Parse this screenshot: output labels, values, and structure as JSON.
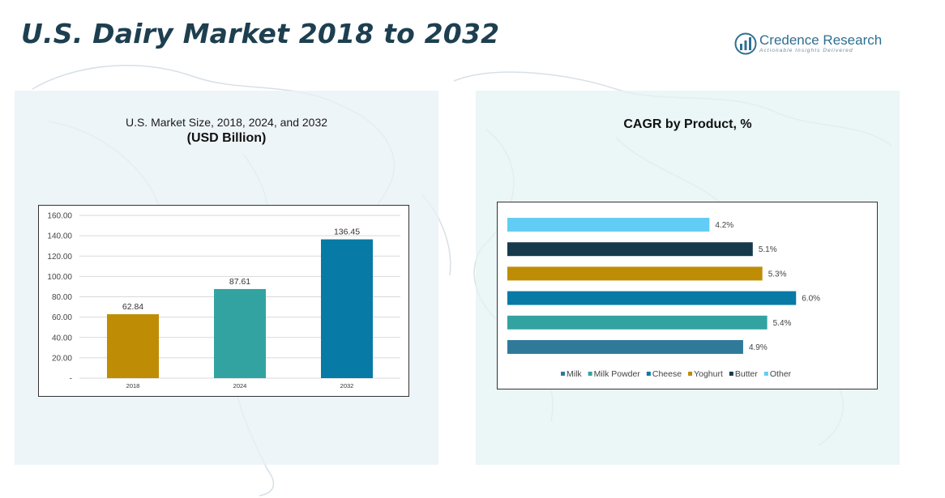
{
  "header": {
    "title": "U.S. Dairy Market 2018 to 2032",
    "logo_name": "Credence Research",
    "logo_tagline": "Actionable Insights Delivered"
  },
  "colors": {
    "title": "#1d3f50",
    "milk": "#2f7a9b",
    "milk_powder": "#33a3a1",
    "cheese": "#087aa6",
    "yoghurt": "#bf8d05",
    "butter": "#163a4c",
    "other": "#62cdf4"
  },
  "chart_data": [
    {
      "type": "bar",
      "title": "U.S. Market Size, 2018, 2024, and 2032",
      "subtitle": "(USD Billion)",
      "categories": [
        "2018",
        "2024",
        "2032"
      ],
      "values": [
        62.84,
        87.61,
        136.45
      ],
      "value_labels": [
        "62.84",
        "87.61",
        "136.45"
      ],
      "bar_colors": [
        "#bf8d05",
        "#33a3a1",
        "#087aa6"
      ],
      "ylim": [
        0,
        160
      ],
      "yticks": [
        0,
        20,
        40,
        60,
        80,
        100,
        120,
        140,
        160
      ],
      "ytick_labels": [
        "-",
        "20.00",
        "40.00",
        "60.00",
        "80.00",
        "100.00",
        "120.00",
        "140.00",
        "160.00"
      ],
      "grid": true
    },
    {
      "type": "bar",
      "orientation": "horizontal",
      "title": "CAGR by Product, %",
      "series": [
        {
          "name": "Milk",
          "value": 4.9,
          "label": "4.9%",
          "color": "#2f7a9b"
        },
        {
          "name": "Milk Powder",
          "value": 5.4,
          "label": "5.4%",
          "color": "#33a3a1"
        },
        {
          "name": "Cheese",
          "value": 6.0,
          "label": "6.0%",
          "color": "#087aa6"
        },
        {
          "name": "Yoghurt",
          "value": 5.3,
          "label": "5.3%",
          "color": "#bf8d05"
        },
        {
          "name": "Butter",
          "value": 5.1,
          "label": "5.1%",
          "color": "#163a4c"
        },
        {
          "name": "Other",
          "value": 4.2,
          "label": "4.2%",
          "color": "#62cdf4"
        }
      ],
      "xlim": [
        0,
        6.4
      ],
      "legend": "bottom",
      "grid": false
    }
  ]
}
